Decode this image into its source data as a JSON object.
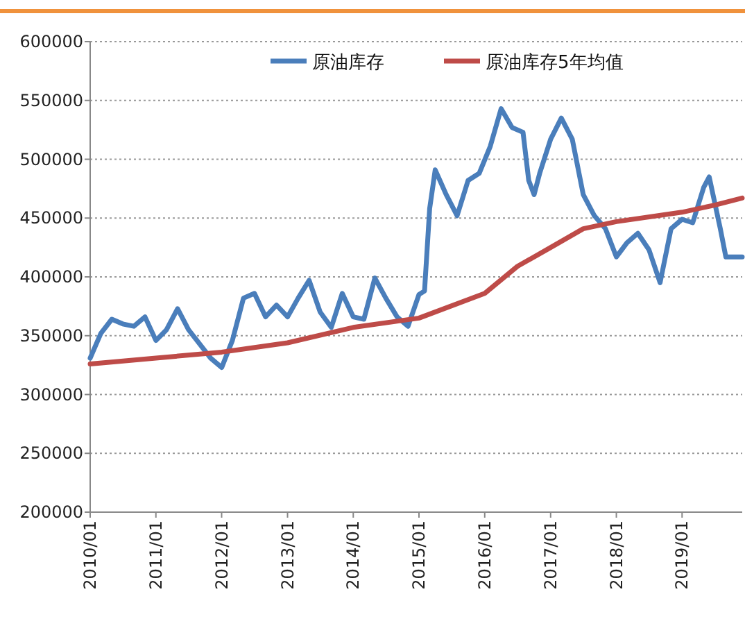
{
  "chart_data": {
    "type": "line",
    "xlim": [
      "2010-01",
      "2019-12"
    ],
    "ylim": [
      200000,
      600000
    ],
    "xticks": [
      {
        "value": "2010-01",
        "label": "2010/01"
      },
      {
        "value": "2011-01",
        "label": "2011/01"
      },
      {
        "value": "2012-01",
        "label": "2012/01"
      },
      {
        "value": "2013-01",
        "label": "2013/01"
      },
      {
        "value": "2014-01",
        "label": "2014/01"
      },
      {
        "value": "2015-01",
        "label": "2015/01"
      },
      {
        "value": "2016-01",
        "label": "2016/01"
      },
      {
        "value": "2017-01",
        "label": "2017/01"
      },
      {
        "value": "2018-01",
        "label": "2018/01"
      },
      {
        "value": "2019-01",
        "label": "2019/01"
      }
    ],
    "yticks": [
      200000,
      250000,
      300000,
      350000,
      400000,
      450000,
      500000,
      550000,
      600000
    ],
    "grid": "y",
    "legend": "top",
    "series": [
      {
        "name": "原油库存",
        "color": "#4a7ebb",
        "x": [
          "2010-01",
          "2010-03",
          "2010-05",
          "2010-07",
          "2010-09",
          "2010-11",
          "2011-01",
          "2011-03",
          "2011-05",
          "2011-07",
          "2011-09",
          "2011-11",
          "2012-01",
          "2012-03",
          "2012-05",
          "2012-07",
          "2012-09",
          "2012-11",
          "2013-01",
          "2013-03",
          "2013-05",
          "2013-07",
          "2013-09",
          "2013-11",
          "2014-01",
          "2014-03",
          "2014-05",
          "2014-07",
          "2014-09",
          "2014-11",
          "2015-01",
          "2015-02",
          "2015-03",
          "2015-04",
          "2015-06",
          "2015-08",
          "2015-10",
          "2015-12",
          "2016-02",
          "2016-04",
          "2016-06",
          "2016-08",
          "2016-09",
          "2016-10",
          "2016-11",
          "2017-01",
          "2017-03",
          "2017-05",
          "2017-07",
          "2017-09",
          "2017-11",
          "2018-01",
          "2018-03",
          "2018-05",
          "2018-07",
          "2018-09",
          "2018-11",
          "2019-01",
          "2019-03",
          "2019-05",
          "2019-06",
          "2019-08",
          "2019-09",
          "2019-12"
        ],
        "values": [
          331000,
          352000,
          364000,
          360000,
          358000,
          366000,
          346000,
          355000,
          373000,
          355000,
          343000,
          331000,
          323000,
          346000,
          382000,
          386000,
          366000,
          376000,
          366000,
          382000,
          397000,
          370000,
          357000,
          386000,
          366000,
          364000,
          399000,
          382000,
          366000,
          358000,
          385000,
          388000,
          458000,
          491000,
          470000,
          452000,
          482000,
          488000,
          511000,
          543000,
          527000,
          523000,
          482000,
          470000,
          488000,
          517000,
          535000,
          517000,
          470000,
          452000,
          441000,
          417000,
          429000,
          437000,
          423000,
          395000,
          441000,
          449000,
          446000,
          476000,
          485000,
          441000,
          417000,
          417000
        ]
      },
      {
        "name": "原油库存5年均值",
        "color": "#be4b48",
        "x": [
          "2010-01",
          "2011-01",
          "2012-01",
          "2013-01",
          "2014-01",
          "2015-01",
          "2016-01",
          "2016-07",
          "2017-01",
          "2017-07",
          "2018-01",
          "2019-01",
          "2019-07",
          "2019-12"
        ],
        "values": [
          326000,
          331000,
          336000,
          344000,
          357000,
          365000,
          386000,
          409000,
          425000,
          441000,
          447000,
          455000,
          461000,
          467000
        ]
      }
    ]
  }
}
